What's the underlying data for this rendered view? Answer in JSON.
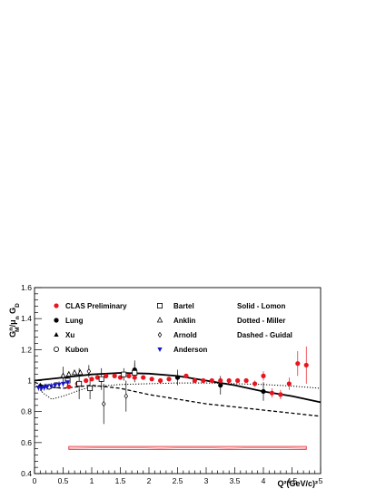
{
  "chart_data": {
    "type": "scatter",
    "xlabel": "Q²(GeV/c)²",
    "ylabel": "G_M^n/μ_n G_D",
    "xlim": [
      0,
      5
    ],
    "ylim": [
      0.4,
      1.6
    ],
    "x_ticks": [
      0,
      0.5,
      1,
      1.5,
      2,
      2.5,
      3,
      3.5,
      4,
      4.5,
      5
    ],
    "x_tick_labels": [
      "0",
      "0.5",
      "1",
      "1.5",
      "2",
      "2.5",
      "3",
      "3.5",
      "4",
      "4.5",
      "5"
    ],
    "y_ticks": [
      0.4,
      0.6,
      0.8,
      1.0,
      1.2,
      1.4,
      1.6
    ],
    "y_tick_labels": [
      "0.4",
      "0.6",
      "0.8",
      "1",
      "1.2",
      "1.4",
      "1.6"
    ],
    "grid": false,
    "legend_placement": "top",
    "legend": [
      {
        "label": "CLAS Preliminary",
        "marker": "filled-circle",
        "color": "#e8141e"
      },
      {
        "label": "Lung",
        "marker": "filled-circle",
        "color": "#000000"
      },
      {
        "label": "Xu",
        "marker": "filled-triangle",
        "color": "#000000"
      },
      {
        "label": "Kubon",
        "marker": "open-circle",
        "color": "#000000"
      },
      {
        "label": "Bartel",
        "marker": "open-square",
        "color": "#000000"
      },
      {
        "label": "Anklin",
        "marker": "open-triangle",
        "color": "#000000"
      },
      {
        "label": "Arnold",
        "marker": "open-diamond",
        "color": "#000000"
      },
      {
        "label": "Anderson",
        "marker": "filled-triangle-down",
        "color": "#1414c8"
      }
    ],
    "curve_labels": [
      "Solid - Lomon",
      "Dotted - Miller",
      "Dashed - Guidal"
    ],
    "series": [
      {
        "name": "CLAS Preliminary",
        "marker": "filled-circle",
        "color": "#e8141e",
        "x": [
          0.6,
          0.75,
          0.9,
          1.0,
          1.1,
          1.25,
          1.4,
          1.5,
          1.65,
          1.75,
          1.9,
          2.05,
          2.2,
          2.35,
          2.5,
          2.65,
          2.8,
          2.95,
          3.1,
          3.25,
          3.4,
          3.55,
          3.7,
          3.85,
          4.0,
          4.15,
          4.3,
          4.45,
          4.6,
          4.75
        ],
        "y": [
          0.96,
          0.98,
          1.0,
          1.01,
          1.02,
          1.03,
          1.03,
          1.02,
          1.03,
          1.02,
          1.02,
          1.01,
          1.0,
          1.01,
          1.02,
          1.03,
          1.0,
          1.0,
          1.0,
          1.0,
          1.0,
          1.0,
          1.0,
          0.98,
          1.03,
          0.92,
          0.91,
          0.98,
          1.11,
          1.1
        ],
        "err": [
          0.01,
          0.01,
          0.01,
          0.01,
          0.01,
          0.01,
          0.01,
          0.01,
          0.01,
          0.01,
          0.01,
          0.01,
          0.01,
          0.01,
          0.01,
          0.01,
          0.01,
          0.01,
          0.01,
          0.01,
          0.01,
          0.01,
          0.01,
          0.02,
          0.03,
          0.03,
          0.03,
          0.04,
          0.08,
          0.12
        ]
      },
      {
        "name": "Lung",
        "marker": "filled-circle",
        "color": "#000000",
        "x": [
          1.75,
          2.5,
          3.25,
          4.0
        ],
        "y": [
          1.07,
          1.02,
          0.97,
          0.93
        ],
        "err": [
          0.06,
          0.05,
          0.06,
          0.06
        ]
      },
      {
        "name": "Xu",
        "marker": "filled-triangle",
        "color": "#000000",
        "x": [
          0.1,
          0.19
        ],
        "y": [
          0.97,
          0.965
        ],
        "err": [
          0.01,
          0.01
        ]
      },
      {
        "name": "Kubon",
        "marker": "open-circle",
        "color": "#000000",
        "x": [
          0.255
        ],
        "y": [
          0.96
        ],
        "err": [
          0.02
        ]
      },
      {
        "name": "Bartel",
        "marker": "open-square",
        "color": "#000000",
        "x": [
          0.39,
          0.58,
          0.78,
          0.97,
          1.17,
          1.56,
          1.75
        ],
        "y": [
          0.97,
          1.0,
          0.98,
          0.95,
          1.01,
          1.04,
          1.05
        ],
        "err": [
          0.02,
          0.05,
          0.1,
          0.07,
          0.07,
          0.04,
          0.06
        ]
      },
      {
        "name": "Anklin",
        "marker": "open-triangle",
        "color": "#000000",
        "x": [
          0.5,
          0.6,
          0.7,
          0.8
        ],
        "y": [
          1.03,
          1.04,
          1.05,
          1.05
        ],
        "err": [
          0.02,
          0.02,
          0.02,
          0.02
        ]
      },
      {
        "name": "Arnold",
        "marker": "open-diamond",
        "color": "#000000",
        "x": [
          0.5,
          0.95,
          1.21,
          1.6
        ],
        "y": [
          1.03,
          1.06,
          0.85,
          0.9
        ],
        "err": [
          0.06,
          0.04,
          0.13,
          0.1
        ]
      },
      {
        "name": "Anderson",
        "marker": "filled-triangle-down",
        "color": "#1414c8",
        "x": [
          0.07,
          0.12,
          0.17,
          0.22,
          0.29,
          0.36,
          0.43,
          0.5,
          0.58
        ],
        "y": [
          0.955,
          0.95,
          0.955,
          0.96,
          0.965,
          0.97,
          0.975,
          0.98,
          0.99
        ],
        "err": [
          0.02,
          0.02,
          0.02,
          0.02,
          0.02,
          0.02,
          0.02,
          0.02,
          0.02
        ]
      }
    ],
    "curves": [
      {
        "name": "Lomon",
        "style": "solid",
        "x": [
          0,
          0.5,
          1.0,
          1.5,
          2.0,
          2.5,
          3.0,
          3.5,
          4.0,
          4.5,
          5.0
        ],
        "y": [
          1.0,
          1.02,
          1.04,
          1.05,
          1.045,
          1.03,
          1.0,
          0.97,
          0.93,
          0.9,
          0.86
        ]
      },
      {
        "name": "Miller",
        "style": "dotted",
        "x": [
          0,
          0.15,
          0.3,
          0.5,
          0.8,
          1.0,
          1.5,
          2.0,
          2.5,
          3.0,
          3.5,
          4.0,
          4.5,
          5.0
        ],
        "y": [
          0.98,
          0.92,
          0.88,
          0.9,
          0.94,
          0.96,
          0.975,
          0.98,
          0.985,
          0.985,
          0.98,
          0.975,
          0.965,
          0.95
        ]
      },
      {
        "name": "Guidal",
        "style": "dashed",
        "x": [
          0,
          0.2,
          0.5,
          1.0,
          1.5,
          2.0,
          2.5,
          3.0,
          3.5,
          4.0,
          4.5,
          5.0
        ],
        "y": [
          0.99,
          0.96,
          0.95,
          0.97,
          0.95,
          0.91,
          0.88,
          0.85,
          0.83,
          0.81,
          0.79,
          0.77
        ]
      }
    ],
    "systematic_band": {
      "color": "#e8141e",
      "x": [
        0.6,
        4.75
      ],
      "lower": 0.556,
      "upper": 0.575
    }
  }
}
